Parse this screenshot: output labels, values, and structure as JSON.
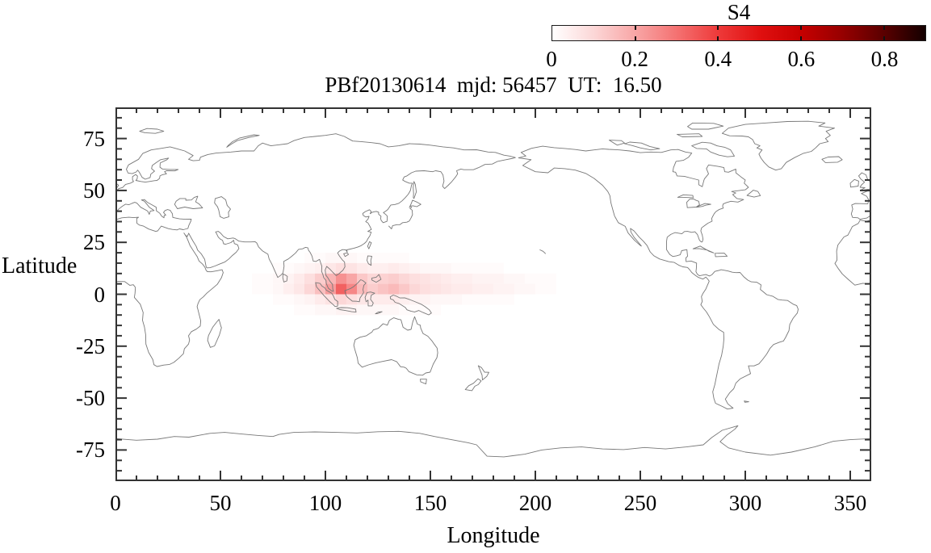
{
  "figure": {
    "title": "PBf20130614  mjd: 56457  UT:  16.50"
  },
  "colorbar": {
    "label": "S4",
    "min": 0,
    "max": 0.9,
    "tick_values": [
      0,
      0.2,
      0.4,
      0.6,
      0.8
    ],
    "tick_labels": [
      "0",
      "0.2",
      "0.4",
      "0.6",
      "0.8"
    ],
    "color_stops": [
      [
        0.0,
        "#ffffff"
      ],
      [
        0.1,
        "#fcd7d7"
      ],
      [
        0.2,
        "#f8a6a6"
      ],
      [
        0.3,
        "#f47272"
      ],
      [
        0.4,
        "#ee3a3a"
      ],
      [
        0.5,
        "#e01010"
      ],
      [
        0.6,
        "#c60000"
      ],
      [
        0.7,
        "#960000"
      ],
      [
        0.8,
        "#5a0000"
      ],
      [
        0.9,
        "#140000"
      ]
    ]
  },
  "axes": {
    "xlabel": "Longitude",
    "ylabel": "Latitude",
    "xlim": [
      0,
      360
    ],
    "ylim": [
      -90,
      90
    ],
    "x_tick_values": [
      0,
      50,
      100,
      150,
      200,
      250,
      300,
      350
    ],
    "x_tick_labels": [
      "0",
      "50",
      "100",
      "150",
      "200",
      "250",
      "300",
      "350"
    ],
    "x_minor_step": 10,
    "y_tick_values": [
      -75,
      -50,
      -25,
      0,
      25,
      50,
      75
    ],
    "y_tick_labels": [
      "-75",
      "-50",
      "-25",
      "0",
      "25",
      "50",
      "75"
    ],
    "y_minor_step": 5
  },
  "colors": {
    "coastline": "#787878",
    "frame": "#333333",
    "text": "#000000",
    "background": "#ffffff"
  },
  "chart_data": {
    "type": "heatmap",
    "title": "PBf20130614  mjd: 56457  UT:  16.50",
    "xlabel": "Longitude",
    "ylabel": "Latitude",
    "xlim": [
      0,
      360
    ],
    "ylim": [
      -90,
      90
    ],
    "colorbar_label": "S4",
    "colorbar_range": [
      0,
      0.9
    ],
    "legend_position": "colorbar top-right",
    "grid": false,
    "basemap": "world coastline outline, longitude 0-360",
    "cell_size_deg": 5,
    "peak": {
      "lon": 107.5,
      "lat": 2.5,
      "s4": 0.33
    },
    "lon_centers": [
      62.5,
      67.5,
      72.5,
      77.5,
      82.5,
      87.5,
      92.5,
      97.5,
      102.5,
      107.5,
      112.5,
      117.5,
      122.5,
      127.5,
      132.5,
      137.5,
      142.5,
      147.5,
      152.5,
      157.5,
      162.5,
      167.5,
      172.5,
      177.5,
      182.5,
      187.5,
      192.5,
      197.5,
      202.5,
      207.5
    ],
    "rows": [
      {
        "lat_center": 17.5,
        "values": [
          0,
          0,
          0,
          0,
          0,
          0,
          0.01,
          0.01,
          0.02,
          0.02,
          0.02,
          0.01,
          0.01,
          0.01,
          0.01,
          0.01,
          0,
          0,
          0,
          0,
          0,
          0,
          0,
          0,
          0,
          0,
          0,
          0,
          0,
          0
        ]
      },
      {
        "lat_center": 12.5,
        "values": [
          0,
          0,
          0,
          0.01,
          0.01,
          0.02,
          0.03,
          0.04,
          0.06,
          0.08,
          0.07,
          0.05,
          0.04,
          0.04,
          0.05,
          0.04,
          0.03,
          0.02,
          0.02,
          0.02,
          0.01,
          0.01,
          0.01,
          0.01,
          0.01,
          0,
          0,
          0,
          0,
          0
        ]
      },
      {
        "lat_center": 7.5,
        "values": [
          0,
          0.01,
          0.01,
          0.02,
          0.03,
          0.05,
          0.08,
          0.12,
          0.17,
          0.24,
          0.2,
          0.13,
          0.1,
          0.11,
          0.12,
          0.1,
          0.08,
          0.07,
          0.06,
          0.05,
          0.04,
          0.04,
          0.03,
          0.03,
          0.03,
          0.02,
          0.02,
          0.01,
          0.01,
          0.01
        ]
      },
      {
        "lat_center": 2.5,
        "values": [
          0,
          0.01,
          0.01,
          0.02,
          0.04,
          0.06,
          0.1,
          0.15,
          0.22,
          0.33,
          0.26,
          0.16,
          0.12,
          0.14,
          0.16,
          0.13,
          0.1,
          0.08,
          0.07,
          0.06,
          0.05,
          0.05,
          0.04,
          0.04,
          0.03,
          0.03,
          0.02,
          0.02,
          0.01,
          0.01
        ]
      },
      {
        "lat_center": -2.5,
        "values": [
          0,
          0,
          0,
          0.01,
          0.01,
          0.02,
          0.03,
          0.05,
          0.07,
          0.1,
          0.08,
          0.06,
          0.05,
          0.05,
          0.05,
          0.04,
          0.03,
          0.03,
          0.02,
          0.02,
          0.02,
          0.01,
          0.01,
          0.01,
          0.01,
          0.01,
          0,
          0,
          0,
          0
        ]
      },
      {
        "lat_center": -7.5,
        "values": [
          0,
          0,
          0,
          0,
          0,
          0.01,
          0.01,
          0.02,
          0.02,
          0.03,
          0.03,
          0.02,
          0.02,
          0.02,
          0.02,
          0.01,
          0.01,
          0.01,
          0.01,
          0,
          0,
          0,
          0,
          0,
          0,
          0,
          0,
          0,
          0,
          0
        ]
      }
    ]
  }
}
